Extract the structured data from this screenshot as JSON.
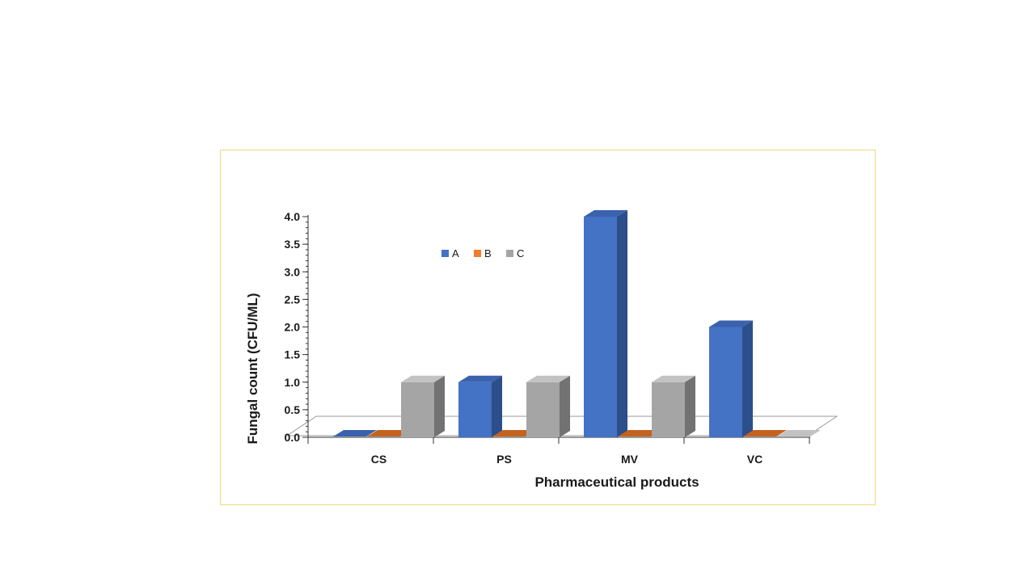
{
  "chart_data": {
    "type": "bar",
    "categories": [
      "CS",
      "PS",
      "MV",
      "VC"
    ],
    "series": [
      {
        "name": "A",
        "values": [
          0.0,
          1.0,
          4.0,
          2.0
        ]
      },
      {
        "name": "B",
        "values": [
          0.0,
          0.0,
          0.0,
          0.0
        ]
      },
      {
        "name": "C",
        "values": [
          1.0,
          1.0,
          1.0,
          0.0
        ]
      }
    ],
    "title": "",
    "xlabel": "Pharmaceutical products",
    "ylabel": "Fungal count (CFU/ML)",
    "ylim": [
      0,
      4
    ],
    "yticks": [
      "0.0",
      "0.5",
      "1.0",
      "1.5",
      "2.0",
      "2.5",
      "3.0",
      "3.5",
      "4.0"
    ],
    "legend_position": "top-left",
    "grid": false,
    "colors": {
      "A": {
        "front": "#4472c4",
        "side": "#2c4e8a",
        "top": "#3a62ad"
      },
      "B": {
        "front": "#ed7d31",
        "side": "#a9561f",
        "top": "#c4621f"
      },
      "C": {
        "front": "#a5a5a5",
        "side": "#727272",
        "top": "#c2c2c2"
      }
    }
  }
}
